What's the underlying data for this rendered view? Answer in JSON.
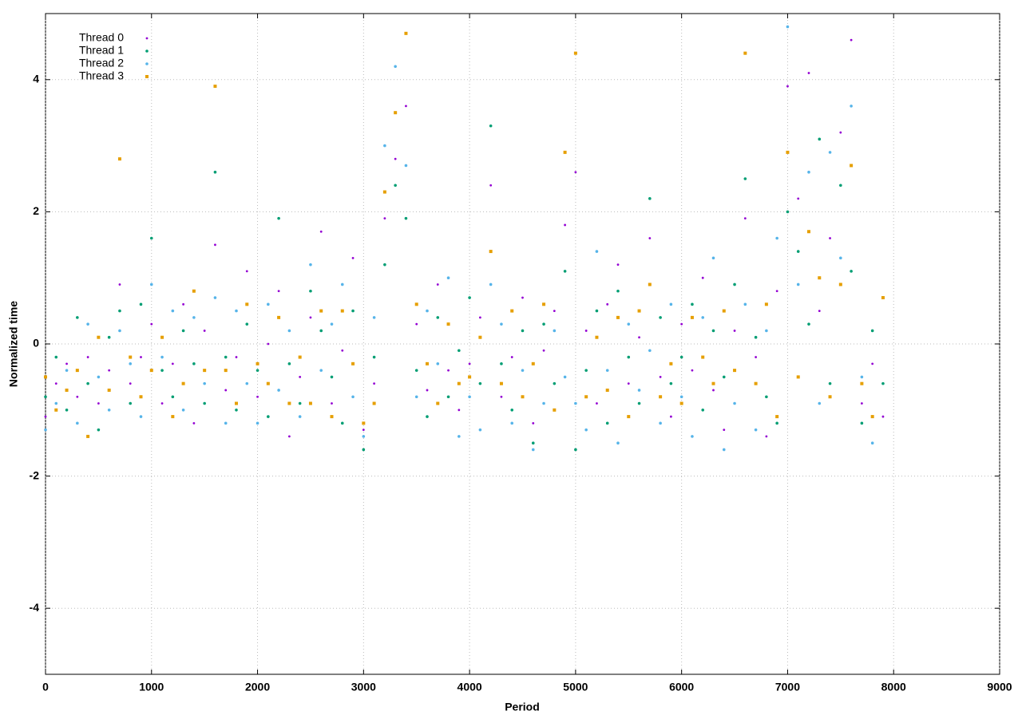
{
  "chart_data": {
    "type": "scatter",
    "xlabel": "Period",
    "ylabel": "Normalized time",
    "xlim": [
      0,
      9000
    ],
    "xticks": [
      0,
      1000,
      2000,
      3000,
      4000,
      5000,
      6000,
      7000,
      8000,
      9000
    ],
    "ylim": [
      -5,
      5
    ],
    "yticks": [
      -4,
      -2,
      0,
      2,
      4
    ],
    "grid": true,
    "legend": "top-left",
    "x": [
      0,
      100,
      200,
      300,
      400,
      500,
      600,
      700,
      800,
      900,
      1000,
      1100,
      1200,
      1300,
      1400,
      1500,
      1600,
      1700,
      1800,
      1900,
      2000,
      2100,
      2200,
      2300,
      2400,
      2500,
      2600,
      2700,
      2800,
      2900,
      3000,
      3100,
      3200,
      3300,
      3400,
      3500,
      3600,
      3700,
      3800,
      3900,
      4000,
      4100,
      4200,
      4300,
      4400,
      4500,
      4600,
      4700,
      4800,
      4900,
      5000,
      5100,
      5200,
      5300,
      5400,
      5500,
      5600,
      5700,
      5800,
      5900,
      6000,
      6100,
      6200,
      6300,
      6400,
      6500,
      6600,
      6700,
      6800,
      6900,
      7000,
      7100,
      7200,
      7300,
      7400,
      7500,
      7600,
      7700,
      7800,
      7900
    ],
    "series": [
      {
        "name": "Thread 0",
        "color": "#9400d3",
        "values": [
          -1.1,
          -0.6,
          -0.3,
          -0.8,
          -0.2,
          -0.9,
          -0.4,
          0.9,
          -0.6,
          -0.2,
          0.3,
          -0.9,
          -0.3,
          0.6,
          -1.2,
          0.2,
          1.5,
          -0.7,
          -0.2,
          1.1,
          -0.8,
          0.0,
          0.8,
          -1.4,
          -0.5,
          0.4,
          1.7,
          -0.9,
          -0.1,
          1.3,
          -1.3,
          -0.6,
          1.9,
          2.8,
          3.6,
          0.3,
          -0.7,
          0.9,
          -0.4,
          -1.0,
          -0.3,
          0.4,
          2.4,
          -0.8,
          -0.2,
          0.7,
          -1.2,
          -0.1,
          0.5,
          1.8,
          2.6,
          0.2,
          -0.9,
          0.6,
          1.2,
          -0.6,
          0.1,
          1.6,
          -0.5,
          -1.1,
          0.3,
          -0.4,
          1.0,
          -0.7,
          -1.3,
          0.2,
          1.9,
          -0.2,
          -1.4,
          0.8,
          3.9,
          2.2,
          4.1,
          0.5,
          1.6,
          3.2,
          4.6,
          -0.9,
          -0.3,
          -1.1
        ]
      },
      {
        "name": "Thread 1",
        "color": "#009e73",
        "values": [
          -0.8,
          -0.2,
          -1.0,
          0.4,
          -0.6,
          -1.3,
          0.1,
          0.5,
          -0.9,
          0.6,
          1.6,
          -0.4,
          -0.8,
          0.2,
          -0.3,
          -0.9,
          2.6,
          -0.2,
          -1.0,
          0.3,
          -0.4,
          -1.1,
          1.9,
          -0.3,
          -0.9,
          0.8,
          0.2,
          -0.5,
          -1.2,
          0.5,
          -1.6,
          -0.2,
          1.2,
          2.4,
          1.9,
          -0.4,
          -1.1,
          0.4,
          -0.8,
          -0.1,
          0.7,
          -0.6,
          3.3,
          -0.3,
          -1.0,
          0.2,
          -1.5,
          0.3,
          -0.6,
          1.1,
          -1.6,
          -0.4,
          0.5,
          -1.2,
          0.8,
          -0.2,
          -0.9,
          2.2,
          0.4,
          -0.6,
          -0.2,
          0.6,
          -1.0,
          0.2,
          -0.5,
          0.9,
          2.5,
          0.1,
          -0.8,
          -1.2,
          2.0,
          1.4,
          0.3,
          3.1,
          -0.6,
          2.4,
          1.1,
          -1.2,
          0.2,
          -0.6
        ]
      },
      {
        "name": "Thread 2",
        "color": "#56b4e9",
        "values": [
          -1.3,
          -0.9,
          -0.4,
          -1.2,
          0.3,
          -0.5,
          -1.0,
          0.2,
          -0.3,
          -1.1,
          0.9,
          -0.2,
          0.5,
          -1.0,
          0.4,
          -0.6,
          0.7,
          -1.2,
          0.5,
          -0.6,
          -1.2,
          0.6,
          -0.7,
          0.2,
          -1.1,
          1.2,
          -0.4,
          0.3,
          0.9,
          -0.8,
          -1.4,
          0.4,
          3.0,
          4.2,
          2.7,
          -0.8,
          0.5,
          -0.3,
          1.0,
          -1.4,
          -0.8,
          -1.3,
          0.9,
          0.3,
          -1.2,
          -0.4,
          -1.6,
          -0.9,
          0.2,
          -0.5,
          -0.9,
          -1.3,
          1.4,
          -0.4,
          -1.5,
          0.3,
          -0.7,
          -0.1,
          -1.2,
          0.6,
          -0.8,
          -1.4,
          0.4,
          1.3,
          -1.6,
          -0.9,
          0.6,
          -1.3,
          0.2,
          1.6,
          4.8,
          0.9,
          2.6,
          -0.9,
          2.9,
          1.3,
          3.6,
          -0.5,
          -1.5,
          0.7
        ]
      },
      {
        "name": "Thread 3",
        "color": "#e69f00",
        "values": [
          -0.5,
          -1.0,
          -0.7,
          -0.4,
          -1.4,
          0.1,
          -0.7,
          2.8,
          -0.2,
          -0.8,
          -0.4,
          0.1,
          -1.1,
          -0.6,
          0.8,
          -0.4,
          3.9,
          -0.4,
          -0.9,
          0.6,
          -0.3,
          -0.6,
          0.4,
          -0.9,
          -0.2,
          -0.9,
          0.5,
          -1.1,
          0.5,
          -0.3,
          -1.2,
          -0.9,
          2.3,
          3.5,
          4.7,
          0.6,
          -0.3,
          -0.9,
          0.3,
          -0.6,
          -0.5,
          0.1,
          1.4,
          -0.6,
          0.5,
          -0.8,
          -0.3,
          0.6,
          -1.0,
          2.9,
          4.4,
          -0.8,
          0.1,
          -0.7,
          0.4,
          -1.1,
          0.5,
          0.9,
          -0.8,
          -0.3,
          -0.9,
          0.4,
          -0.2,
          -0.6,
          0.5,
          -0.4,
          4.4,
          -0.6,
          0.6,
          -1.1,
          2.9,
          -0.5,
          1.7,
          1.0,
          -0.8,
          0.9,
          2.7,
          -0.6,
          -1.1,
          0.7
        ]
      }
    ]
  }
}
